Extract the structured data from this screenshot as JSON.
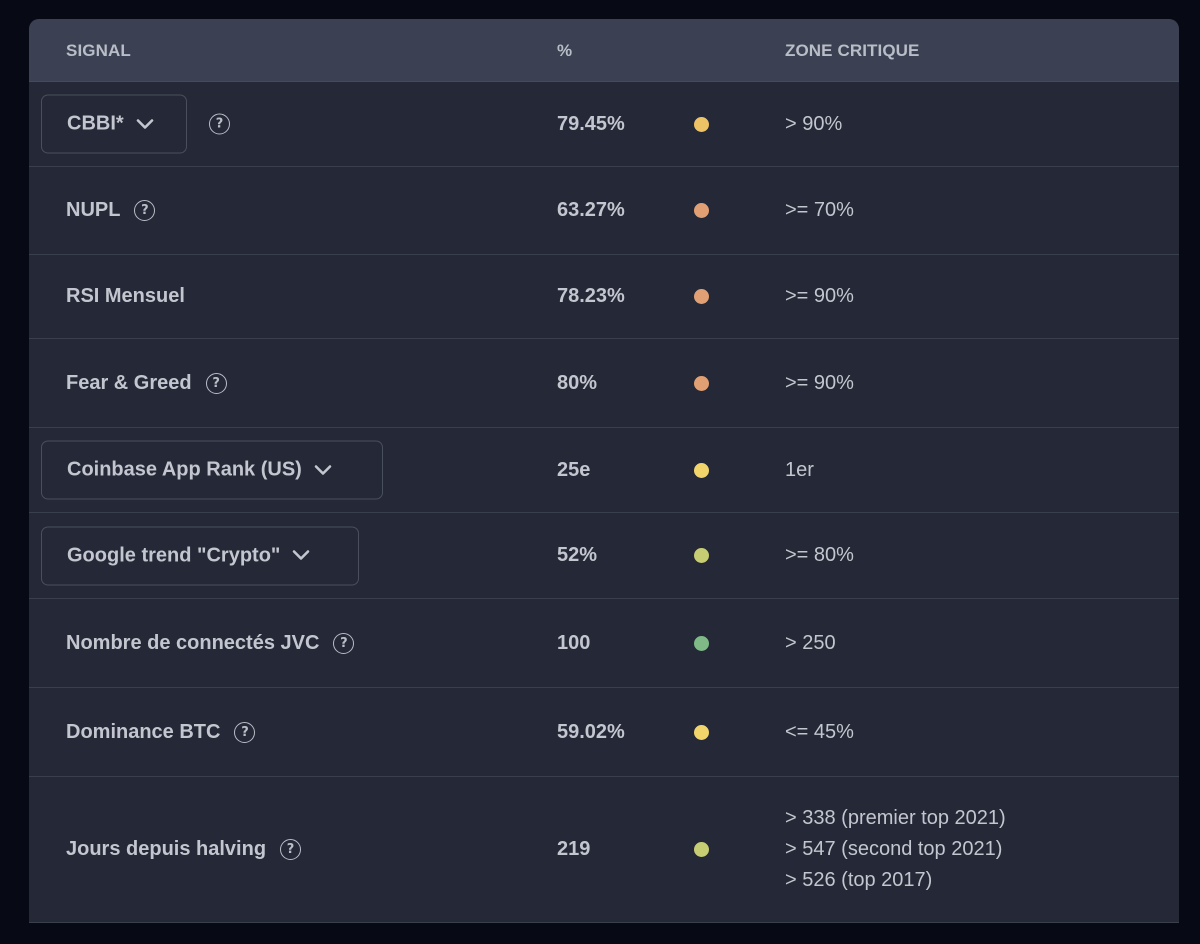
{
  "header": {
    "signal": "SIGNAL",
    "percent": "%",
    "zone": "ZONE CRITIQUE"
  },
  "rows": [
    {
      "signal": "CBBI*",
      "value": "79.45%",
      "zone": [
        "> 90%"
      ],
      "dot_color": "#eec366",
      "dropdown": true,
      "help": true
    },
    {
      "signal": "NUPL",
      "value": "63.27%",
      "zone": [
        ">= 70%"
      ],
      "dot_color": "#e0a073",
      "dropdown": false,
      "help": true
    },
    {
      "signal": "RSI Mensuel",
      "value": "78.23%",
      "zone": [
        ">= 90%"
      ],
      "dot_color": "#e0a073",
      "dropdown": false,
      "help": false
    },
    {
      "signal": "Fear & Greed",
      "value": "80%",
      "zone": [
        ">= 90%"
      ],
      "dot_color": "#e0a073",
      "dropdown": false,
      "help": true
    },
    {
      "signal": "Coinbase App Rank (US)",
      "value": "25e",
      "zone": [
        "1er"
      ],
      "dot_color": "#f1d56b",
      "dropdown": true,
      "help": false
    },
    {
      "signal": "Google trend \"Crypto\"",
      "value": "52%",
      "zone": [
        ">= 80%"
      ],
      "dot_color": "#c6cd73",
      "dropdown": true,
      "help": false
    },
    {
      "signal": "Nombre de connectés JVC",
      "value": "100",
      "zone": [
        "> 250"
      ],
      "dot_color": "#7fb987",
      "dropdown": false,
      "help": true
    },
    {
      "signal": "Dominance BTC",
      "value": "59.02%",
      "zone": [
        "<= 45%"
      ],
      "dot_color": "#f1d56b",
      "dropdown": false,
      "help": true
    },
    {
      "signal": "Jours depuis halving",
      "value": "219",
      "zone": [
        "> 338 (premier top 2021)",
        "> 547 (second top 2021)",
        "> 526 (top 2017)"
      ],
      "dot_color": "#c6cd73",
      "dropdown": false,
      "help": true
    }
  ],
  "icons": {
    "help": "question-circle-icon",
    "dropdown": "chevron-down-icon"
  }
}
